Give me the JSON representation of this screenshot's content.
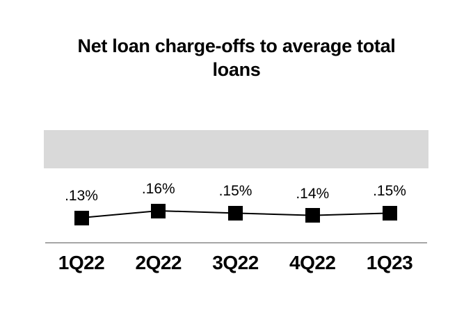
{
  "title": "Net loan charge-offs to average total loans",
  "colors": {
    "background": "#ffffff",
    "highlight_band": "#d9d9d9",
    "axis_line": "#a6a6a6",
    "series": "#000000",
    "text": "#000000"
  },
  "chart_data": {
    "type": "line",
    "title": "Net loan charge-offs to average total loans",
    "categories": [
      "1Q22",
      "2Q22",
      "3Q22",
      "4Q22",
      "1Q23"
    ],
    "values": [
      0.13,
      0.16,
      0.15,
      0.14,
      0.15
    ],
    "data_labels": [
      ".13%",
      ".16%",
      ".15%",
      ".14%",
      ".15%"
    ],
    "unit": "%",
    "marker_shape": "square",
    "grid": false,
    "legend": false,
    "y_axis_ticks_visible": false
  }
}
